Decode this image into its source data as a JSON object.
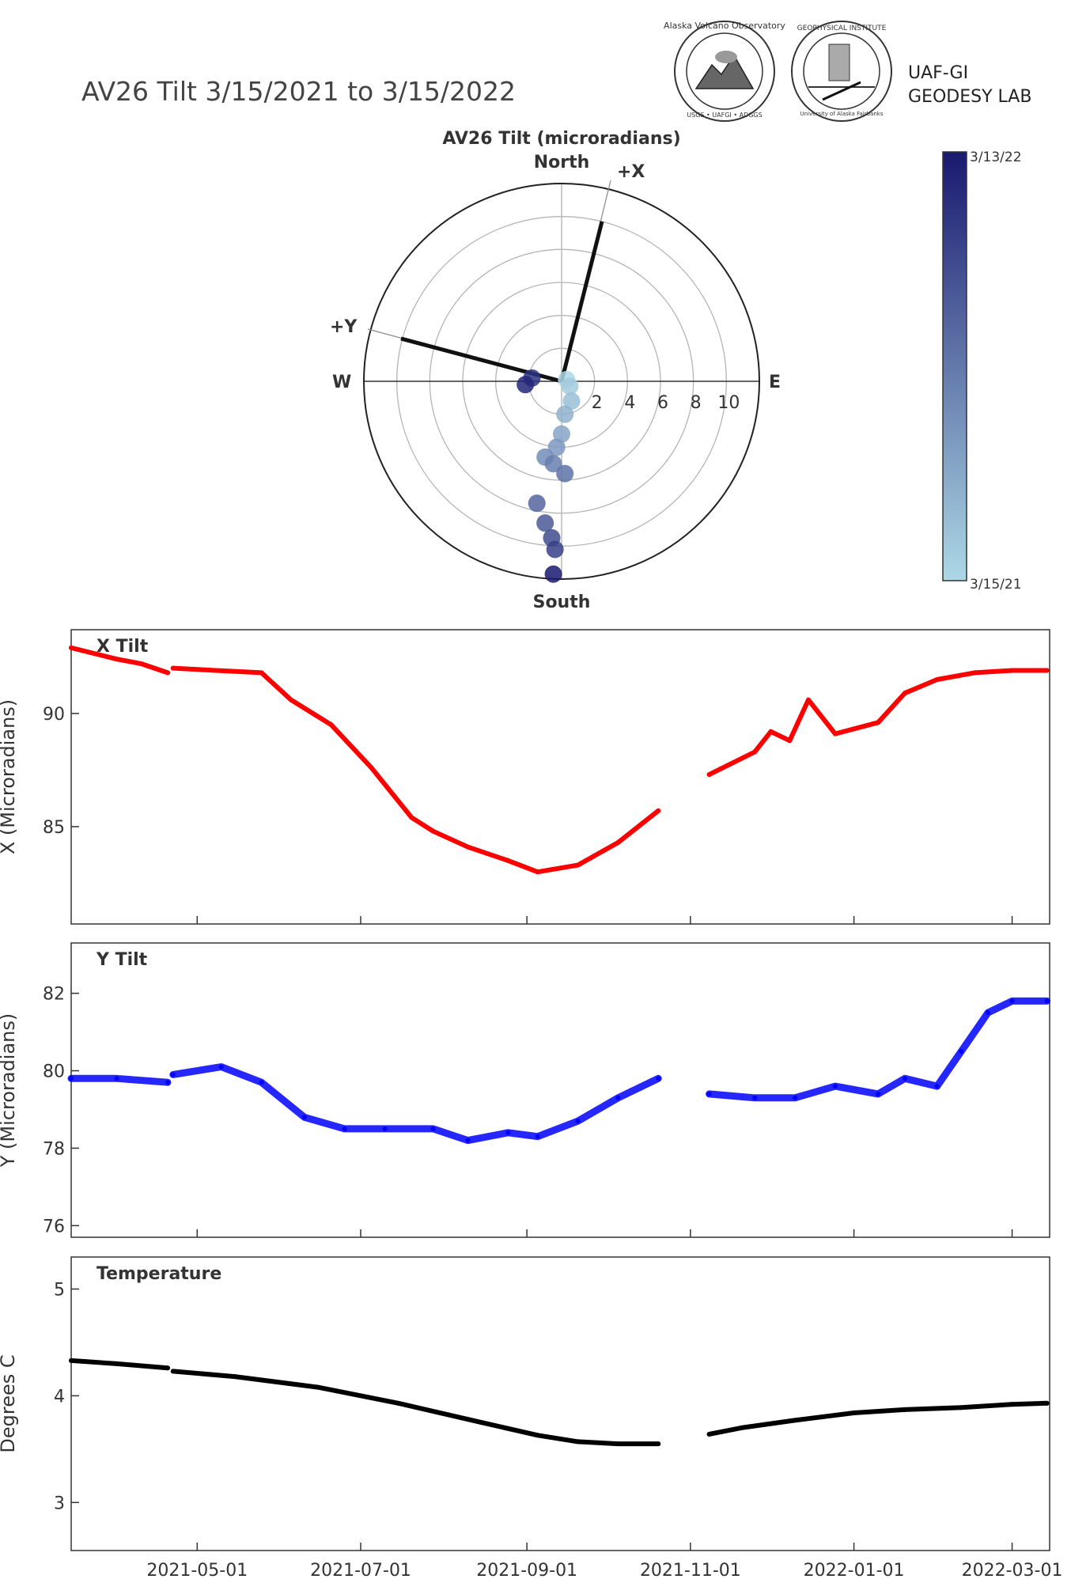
{
  "header": {
    "title": "AV26 Tilt 3/15/2021 to 3/15/2022",
    "lab_line1": "UAF-GI",
    "lab_line2": "GEODESY LAB",
    "logo1_text": "Alaska Volcano Observatory",
    "logo1_sub": "USGS • UAFGI • ADGGS",
    "logo2_text": "GEOPHYSICAL INSTITUTE",
    "logo2_sub": "University of Alaska Fairbanks"
  },
  "polar": {
    "title": "AV26 Tilt (microradians)",
    "north": "North",
    "south": "South",
    "east": "E",
    "west": "W",
    "plus_x": "+X",
    "plus_y": "+Y",
    "ring_labels": [
      "2",
      "4",
      "6",
      "8",
      "10"
    ]
  },
  "colorbar": {
    "top_label": "3/13/22",
    "bottom_label": "3/15/21",
    "color_start": "#add8e6",
    "color_end": "#191970"
  },
  "colors": {
    "x_series": "#ff0000",
    "y_series": "#0000ff",
    "temp_series": "#000000"
  },
  "chart_data": [
    {
      "type": "scatter",
      "title": "AV26 Tilt (microradians)",
      "polar": true,
      "r_ticks": [
        2,
        4,
        6,
        8,
        10
      ],
      "points_xy": [
        [
          0.3,
          0.1
        ],
        [
          0.5,
          -0.3
        ],
        [
          0.6,
          -1.2
        ],
        [
          0.2,
          -2.0
        ],
        [
          0.0,
          -3.2
        ],
        [
          -0.3,
          -4.0
        ],
        [
          -1.0,
          -4.6
        ],
        [
          -0.5,
          -5.0
        ],
        [
          0.2,
          -5.6
        ],
        [
          -1.5,
          -7.4
        ],
        [
          -1.0,
          -8.6
        ],
        [
          -0.6,
          -9.5
        ],
        [
          -0.4,
          -10.2
        ],
        [
          -1.8,
          0.2
        ],
        [
          -2.2,
          -0.2
        ],
        [
          -0.5,
          -11.7
        ]
      ]
    },
    {
      "type": "scatter",
      "title": "X Tilt",
      "ylabel": "X (Microradians)",
      "ylim": [
        80.7,
        93.7
      ],
      "xlim": [
        "2021-03-15",
        "2022-03-15"
      ],
      "yticks": [
        85,
        90
      ],
      "xticks": [
        "2021-05-01",
        "2021-07-01",
        "2021-09-01",
        "2021-11-01",
        "2022-01-01",
        "2022-03-01"
      ],
      "x": [
        "2021-03-15",
        "2021-04-01",
        "2021-04-10",
        "2021-04-20",
        "2021-04-22",
        "2021-05-08",
        "2021-05-25",
        "2021-06-05",
        "2021-06-20",
        "2021-07-05",
        "2021-07-20",
        "2021-07-28",
        "2021-08-10",
        "2021-08-25",
        "2021-09-05",
        "2021-09-20",
        "2021-10-05",
        "2021-10-20",
        "2021-11-08",
        "2021-11-25",
        "2021-12-01",
        "2021-12-08",
        "2021-12-15",
        "2021-12-25",
        "2022-01-10",
        "2022-01-20",
        "2022-02-01",
        "2022-02-15",
        "2022-03-01",
        "2022-03-14"
      ],
      "values": [
        92.9,
        92.4,
        92.2,
        91.8,
        92.0,
        91.9,
        91.8,
        90.6,
        89.5,
        87.6,
        85.4,
        84.8,
        84.1,
        83.5,
        83.0,
        83.3,
        84.3,
        85.7,
        87.3,
        88.3,
        89.2,
        88.8,
        90.6,
        89.1,
        89.6,
        90.9,
        91.5,
        91.8,
        91.9,
        91.9
      ]
    },
    {
      "type": "scatter",
      "title": "Y Tilt",
      "ylabel": "Y (Microradians)",
      "ylim": [
        75.7,
        83.3
      ],
      "xlim": [
        "2021-03-15",
        "2022-03-15"
      ],
      "yticks": [
        76,
        78,
        80,
        82
      ],
      "xticks": [
        "2021-05-01",
        "2021-07-01",
        "2021-09-01",
        "2021-11-01",
        "2022-01-01",
        "2022-03-01"
      ],
      "x": [
        "2021-03-15",
        "2021-04-01",
        "2021-04-20",
        "2021-04-22",
        "2021-05-10",
        "2021-05-25",
        "2021-06-10",
        "2021-06-25",
        "2021-07-10",
        "2021-07-28",
        "2021-08-10",
        "2021-08-25",
        "2021-09-05",
        "2021-09-20",
        "2021-10-05",
        "2021-10-20",
        "2021-11-08",
        "2021-11-25",
        "2021-12-10",
        "2021-12-25",
        "2022-01-10",
        "2022-01-20",
        "2022-02-01",
        "2022-02-10",
        "2022-02-20",
        "2022-03-01",
        "2022-03-14"
      ],
      "values": [
        79.8,
        79.8,
        79.7,
        79.9,
        80.1,
        79.7,
        78.8,
        78.5,
        78.5,
        78.5,
        78.2,
        78.4,
        78.3,
        78.7,
        79.3,
        79.8,
        79.4,
        79.3,
        79.3,
        79.6,
        79.4,
        79.8,
        79.6,
        80.5,
        81.5,
        81.8,
        81.8
      ]
    },
    {
      "type": "scatter",
      "title": "Temperature",
      "ylabel": "Degrees C",
      "ylim": [
        2.55,
        5.3
      ],
      "xlim": [
        "2021-03-15",
        "2022-03-15"
      ],
      "yticks": [
        3,
        4,
        5
      ],
      "xticks": [
        "2021-05-01",
        "2021-07-01",
        "2021-09-01",
        "2021-11-01",
        "2022-01-01",
        "2022-03-01"
      ],
      "x": [
        "2021-03-15",
        "2021-04-01",
        "2021-04-20",
        "2021-04-22",
        "2021-05-15",
        "2021-06-15",
        "2021-07-15",
        "2021-08-15",
        "2021-09-05",
        "2021-09-20",
        "2021-10-05",
        "2021-10-20",
        "2021-11-08",
        "2021-11-20",
        "2021-12-10",
        "2022-01-01",
        "2022-01-20",
        "2022-02-10",
        "2022-03-01",
        "2022-03-14"
      ],
      "values": [
        4.33,
        4.3,
        4.26,
        4.23,
        4.18,
        4.08,
        3.93,
        3.75,
        3.63,
        3.57,
        3.55,
        3.55,
        3.64,
        3.7,
        3.77,
        3.84,
        3.87,
        3.89,
        3.92,
        3.93
      ]
    }
  ]
}
